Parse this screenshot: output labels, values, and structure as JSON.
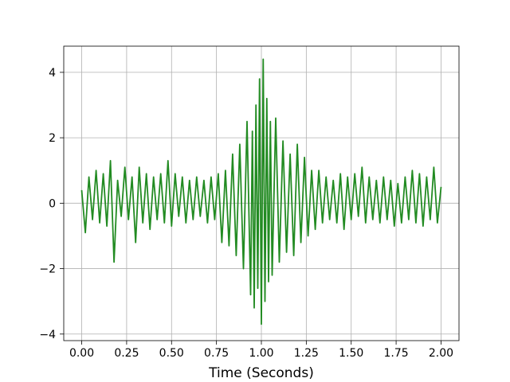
{
  "chart_data": {
    "type": "line",
    "title": "",
    "xlabel": "Time (Seconds)",
    "ylabel": "",
    "xlim": [
      -0.1,
      2.1
    ],
    "ylim": [
      -4.2,
      4.8
    ],
    "xticks": [
      0.0,
      0.25,
      0.5,
      0.75,
      1.0,
      1.25,
      1.5,
      1.75,
      2.0
    ],
    "xtick_labels": [
      "0.00",
      "0.25",
      "0.50",
      "0.75",
      "1.00",
      "1.25",
      "1.50",
      "1.75",
      "2.00"
    ],
    "yticks": [
      -4,
      -2,
      0,
      2,
      4
    ],
    "ytick_labels": [
      "−4",
      "−2",
      "0",
      "2",
      "4"
    ],
    "grid": true,
    "line_color": "#228b22",
    "series": [
      {
        "x": [
          0.0,
          0.02,
          0.04,
          0.06,
          0.08,
          0.1,
          0.12,
          0.14,
          0.16,
          0.18,
          0.2,
          0.22,
          0.24,
          0.26,
          0.28,
          0.3,
          0.32,
          0.34,
          0.36,
          0.38,
          0.4,
          0.42,
          0.44,
          0.46,
          0.48,
          0.5,
          0.52,
          0.54,
          0.56,
          0.58,
          0.6,
          0.62,
          0.64,
          0.66,
          0.68,
          0.7,
          0.72,
          0.74,
          0.76,
          0.78,
          0.8,
          0.82,
          0.84,
          0.86,
          0.88,
          0.9,
          0.92,
          0.94,
          0.95,
          0.96,
          0.97,
          0.98,
          0.99,
          1.0,
          1.01,
          1.02,
          1.03,
          1.04,
          1.05,
          1.06,
          1.08,
          1.1,
          1.12,
          1.14,
          1.16,
          1.18,
          1.2,
          1.22,
          1.24,
          1.26,
          1.28,
          1.3,
          1.32,
          1.34,
          1.36,
          1.38,
          1.4,
          1.42,
          1.44,
          1.46,
          1.48,
          1.5,
          1.52,
          1.54,
          1.56,
          1.58,
          1.6,
          1.62,
          1.64,
          1.66,
          1.68,
          1.7,
          1.72,
          1.74,
          1.76,
          1.78,
          1.8,
          1.82,
          1.84,
          1.86,
          1.88,
          1.9,
          1.92,
          1.94,
          1.96,
          1.98,
          2.0
        ],
        "y": [
          0.4,
          -0.9,
          0.8,
          -0.5,
          1.0,
          -0.6,
          0.9,
          -0.7,
          1.3,
          -1.8,
          0.7,
          -0.4,
          1.1,
          -0.5,
          0.8,
          -1.2,
          1.1,
          -0.6,
          0.9,
          -0.8,
          0.8,
          -0.5,
          0.9,
          -0.6,
          1.3,
          -0.7,
          0.9,
          -0.4,
          0.8,
          -0.6,
          0.7,
          -0.5,
          0.8,
          -0.4,
          0.7,
          -0.6,
          0.8,
          -0.5,
          0.9,
          -1.2,
          1.0,
          -1.3,
          1.5,
          -1.6,
          1.8,
          -2.0,
          2.5,
          -2.8,
          2.2,
          -3.2,
          3.0,
          -2.6,
          3.8,
          -3.7,
          4.4,
          -3.0,
          3.2,
          -2.4,
          2.5,
          -2.2,
          2.6,
          -1.8,
          1.9,
          -1.5,
          1.5,
          -1.6,
          1.8,
          -1.2,
          1.4,
          -1.0,
          1.0,
          -0.8,
          1.0,
          -0.6,
          0.8,
          -0.5,
          0.7,
          -0.6,
          0.9,
          -0.8,
          0.8,
          -0.5,
          0.9,
          -0.4,
          1.1,
          -0.6,
          0.8,
          -0.5,
          0.7,
          -0.6,
          0.8,
          -0.5,
          0.7,
          -0.7,
          0.6,
          -0.6,
          0.8,
          -0.5,
          1.0,
          -0.6,
          0.9,
          -0.7,
          0.8,
          -0.5,
          1.1,
          -0.6,
          0.5
        ]
      }
    ]
  }
}
